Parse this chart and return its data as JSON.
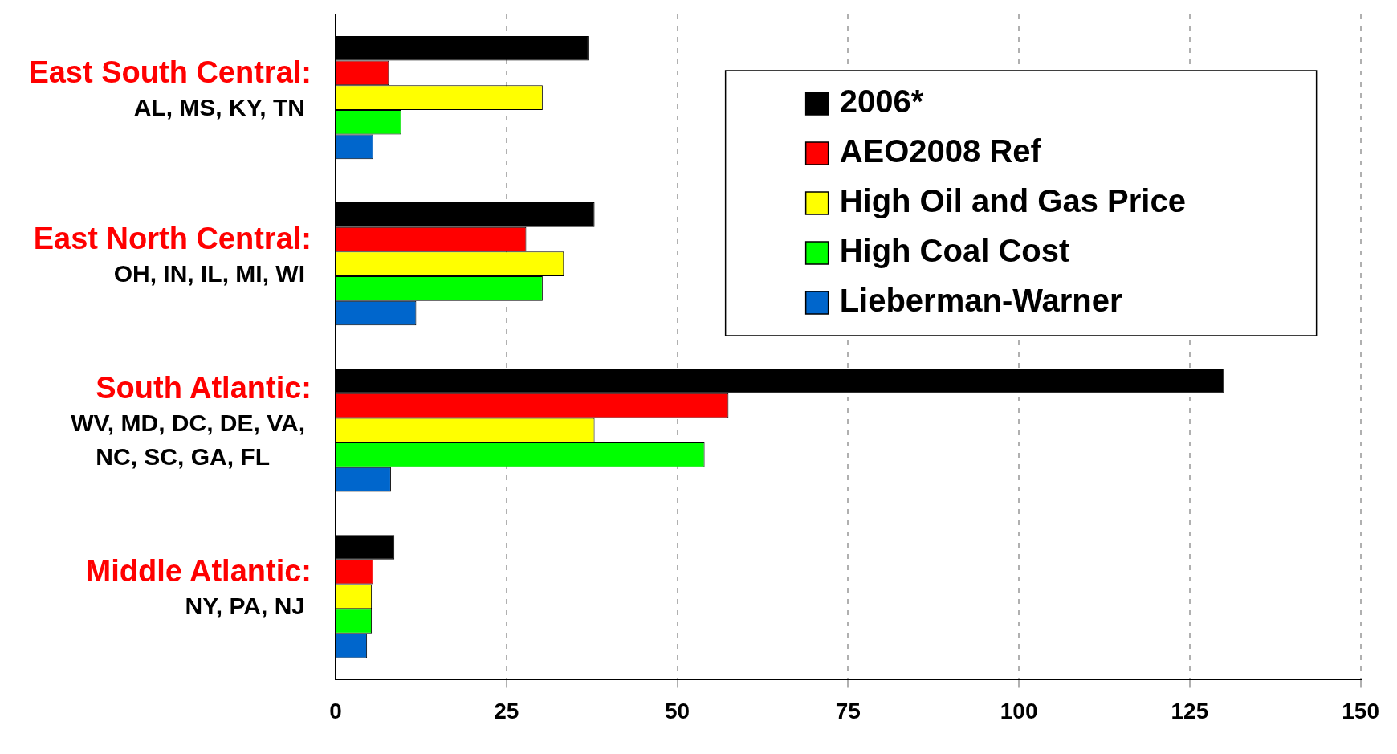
{
  "chart_data": {
    "type": "bar",
    "orientation": "horizontal",
    "categories": [
      "East South Central:\nAL, MS, KY, TN",
      "East North Central:\nOH, IN, IL, MI, WI",
      "South Atlantic:\nWV, MD, DC, DE, VA,\nNC, SC, GA, FL",
      "Middle Atlantic:\nNY, PA, NJ"
    ],
    "series": [
      {
        "name": "2006*",
        "color": "#000000",
        "values": [
          37.0,
          37.9,
          130.0,
          8.6
        ]
      },
      {
        "name": "AEO2008 Ref",
        "color": "#ff0000",
        "values": [
          7.8,
          27.9,
          57.5,
          5.5
        ]
      },
      {
        "name": "High Oil and Gas Price",
        "color": "#ffff00",
        "values": [
          30.3,
          33.4,
          37.9,
          5.3
        ]
      },
      {
        "name": "High Coal Cost",
        "color": "#00ff00",
        "values": [
          9.6,
          30.3,
          54.0,
          5.3
        ]
      },
      {
        "name": "Lieberman-Warner",
        "color": "#0066cc",
        "values": [
          5.5,
          11.8,
          8.1,
          4.6
        ]
      }
    ],
    "xlim": [
      0,
      150
    ],
    "xticks": [
      0,
      25,
      50,
      75,
      100,
      125,
      150
    ],
    "grid": "x",
    "legend": "top right"
  }
}
